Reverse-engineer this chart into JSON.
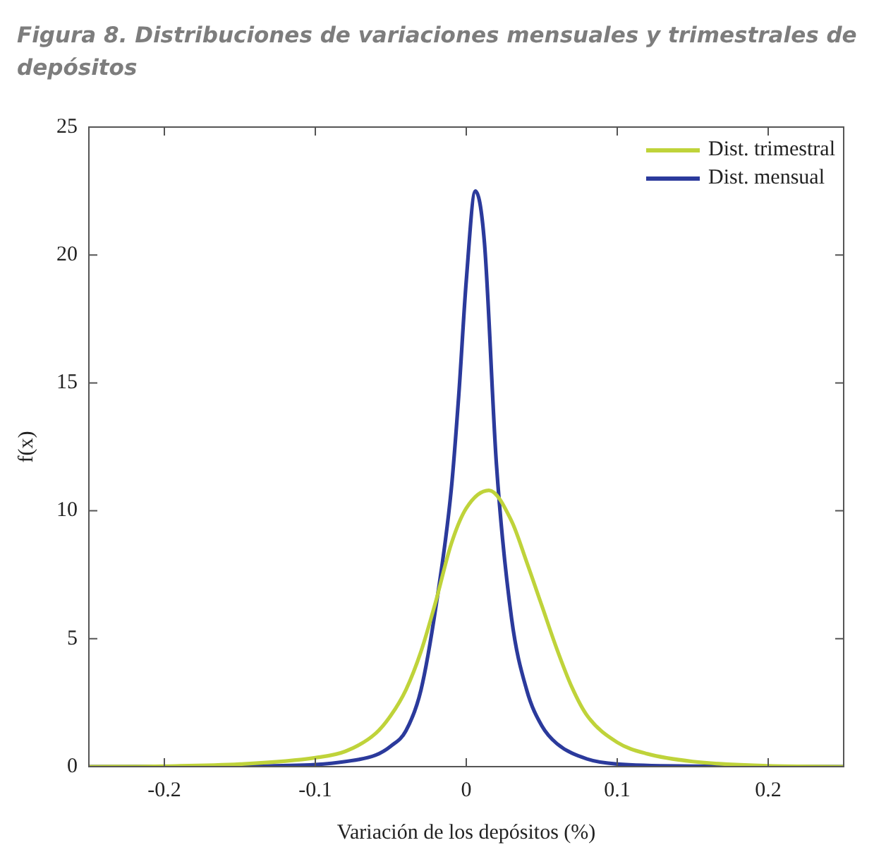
{
  "chart_data": {
    "type": "line",
    "title": "Figura 8. Distribuciones de variaciones mensuales y trimestrales de depósitos",
    "xlabel": "Variación de los depósitos (%)",
    "ylabel": "f(x)",
    "xlim": [
      -0.25,
      0.25
    ],
    "xticks": [
      -0.2,
      -0.1,
      0,
      0.1,
      0.2
    ],
    "ylim": [
      0,
      25
    ],
    "yticks": [
      0,
      5,
      10,
      15,
      20,
      25
    ],
    "legend": "top right",
    "marker": "none",
    "line_style": "solid",
    "series": [
      {
        "name": "Dist. trimestral",
        "color": "#bfd33a",
        "x": [
          -0.25,
          -0.2,
          -0.15,
          -0.1,
          -0.08,
          -0.06,
          -0.05,
          -0.04,
          -0.03,
          -0.02,
          -0.01,
          0,
          0.015,
          0.03,
          0.04,
          0.05,
          0.06,
          0.07,
          0.08,
          0.1,
          0.12,
          0.15,
          0.2,
          0.25
        ],
        "values": [
          0,
          0.02,
          0.1,
          0.35,
          0.6,
          1.3,
          2.0,
          3.0,
          4.5,
          6.5,
          8.7,
          10.1,
          10.8,
          9.6,
          8.0,
          6.3,
          4.6,
          3.1,
          2.0,
          0.95,
          0.5,
          0.2,
          0.03,
          0
        ]
      },
      {
        "name": "Dist. mensual",
        "color": "#2b3a9c",
        "x": [
          -0.25,
          -0.15,
          -0.1,
          -0.08,
          -0.06,
          -0.05,
          -0.04,
          -0.03,
          -0.02,
          -0.01,
          -0.005,
          0,
          0.006,
          0.012,
          0.02,
          0.03,
          0.04,
          0.05,
          0.06,
          0.08,
          0.1,
          0.15,
          0.25
        ],
        "values": [
          0,
          0.02,
          0.08,
          0.2,
          0.45,
          0.8,
          1.4,
          3.0,
          6.3,
          10.8,
          14.5,
          19,
          22.5,
          20.5,
          11.8,
          5.8,
          3.0,
          1.6,
          0.9,
          0.3,
          0.1,
          0.02,
          0
        ]
      }
    ]
  }
}
